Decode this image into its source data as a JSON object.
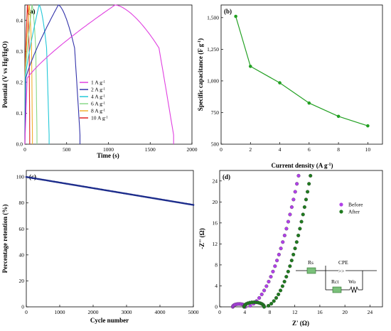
{
  "chart_data": [
    {
      "id": "a",
      "type": "line",
      "panel_label": "(a)",
      "xlabel": "Time (s)",
      "ylabel": "Potential (V vs Hg/HgO)",
      "xlim": [
        0,
        2000
      ],
      "ylim": [
        0,
        0.45
      ],
      "xticks": [
        0,
        500,
        1000,
        1500,
        2000
      ],
      "yticks": [
        0.0,
        0.1,
        0.2,
        0.3,
        0.4
      ],
      "legend_position": "center-right",
      "series": [
        {
          "name": "1 A g",
          "sup": "-1",
          "color": "#e040e0",
          "charge_end": 1080,
          "discharge_end": 1780
        },
        {
          "name": "2 A g",
          "sup": "-1",
          "color": "#3333aa",
          "charge_end": 400,
          "discharge_end": 660
        },
        {
          "name": "4 A g",
          "sup": "-1",
          "color": "#22c8d8",
          "charge_end": 170,
          "discharge_end": 290
        },
        {
          "name": "6 A g",
          "sup": "-1",
          "color": "#88d888",
          "charge_end": 85,
          "discharge_end": 145
        },
        {
          "name": "8 A g",
          "sup": "-1",
          "color": "#f0b030",
          "charge_end": 50,
          "discharge_end": 90
        },
        {
          "name": "10 A g",
          "sup": "-1",
          "color": "#e02020",
          "charge_end": 30,
          "discharge_end": 58
        }
      ]
    },
    {
      "id": "b",
      "type": "line",
      "panel_label": "(b)",
      "xlabel": "Current density (A g",
      "xlabel_sup": "-1",
      "xlabel_end": ")",
      "ylabel": "Specific capacitance (F g",
      "ylabel_sup": "-1",
      "ylabel_end": ")",
      "xlim": [
        0,
        11
      ],
      "ylim": [
        500,
        1600
      ],
      "xticks": [
        0,
        2,
        4,
        6,
        8,
        10
      ],
      "yticks": [
        500,
        750,
        1000,
        1250,
        1500
      ],
      "ytick_labels": [
        "500",
        "750",
        "1,000",
        "1,250",
        "1,500"
      ],
      "series": [
        {
          "color": "#22a022",
          "x": [
            1,
            2,
            4,
            6,
            8,
            10
          ],
          "y": [
            1510,
            1115,
            985,
            825,
            720,
            645
          ]
        }
      ]
    },
    {
      "id": "c",
      "type": "scatter",
      "panel_label": "(c)",
      "xlabel": "Cycle number",
      "ylabel": "Percentage retention (%)",
      "xlim": [
        0,
        5000
      ],
      "ylim": [
        0,
        105
      ],
      "xticks": [
        0,
        1000,
        2000,
        3000,
        4000,
        5000
      ],
      "yticks": [
        0,
        20,
        40,
        60,
        80,
        100
      ],
      "series": [
        {
          "color": "#1a2a8a",
          "x_start": 0,
          "x_end": 5000,
          "y_start": 100,
          "y_end": 78.5
        }
      ]
    },
    {
      "id": "d",
      "type": "scatter",
      "panel_label": "(d)",
      "xlabel": "Z' (Ω)",
      "ylabel": "-Z'' (Ω)",
      "xlim": [
        0,
        26
      ],
      "ylim": [
        0,
        26
      ],
      "xticks": [
        0,
        4,
        8,
        12,
        16,
        20,
        24
      ],
      "yticks": [
        0,
        4,
        8,
        12,
        16,
        20,
        24
      ],
      "legend_position": "upper-right",
      "series": [
        {
          "name": "Before",
          "color": "#b040e8",
          "semicircle": [
            2.1,
            4.1
          ],
          "tail_end": [
            12.6,
            25
          ]
        },
        {
          "name": "After",
          "color": "#1f7a1f",
          "semicircle": [
            3.9,
            7.1
          ],
          "tail_end": [
            14.5,
            25
          ]
        }
      ],
      "circuit_labels": {
        "rs": "Rs",
        "rct": "Rct",
        "cpe": "CPE",
        "wo": "Wo"
      }
    }
  ]
}
